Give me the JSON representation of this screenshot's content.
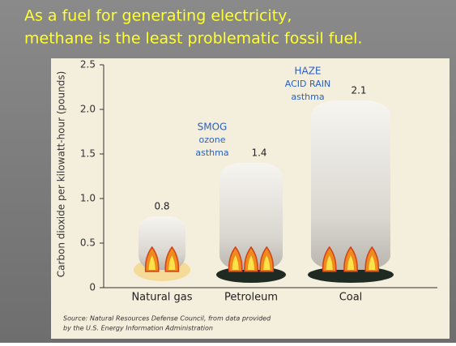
{
  "chart_data": {
    "type": "bar",
    "title": [
      "As a fuel for generating electricity,",
      "methane is the least problematic fossil fuel."
    ],
    "y_label": "Carbon dioxide per kilowatt-hour (pounds)",
    "categories": [
      "Natural gas",
      "Petroleum",
      "Coal"
    ],
    "values": [
      0.8,
      1.4,
      2.1
    ],
    "ylim": [
      0,
      2.5
    ],
    "yticks": [
      0,
      0.5,
      {
        "value": 1.0,
        "label": "1.0"
      },
      1.5,
      {
        "value": 2.0,
        "label": "2.0"
      },
      2.5
    ],
    "grid": false,
    "annotations": [
      {
        "category": "Petroleum",
        "lines": [
          "SMOG",
          "ozone",
          "asthma"
        ]
      },
      {
        "category": "Coal",
        "lines": [
          "HAZE",
          "ACID RAIN",
          "asthma"
        ]
      }
    ],
    "source": [
      "Source: Natural Resources Defense Council, from data provided",
      "by the U.S. Energy Information Administration"
    ]
  }
}
